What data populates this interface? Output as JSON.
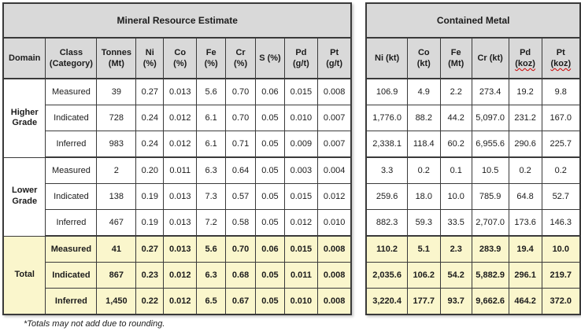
{
  "resource_table": {
    "title": "Mineral Resource Estimate",
    "columns": [
      {
        "id": "domain",
        "lines": [
          "Domain"
        ]
      },
      {
        "id": "class",
        "lines": [
          "Class",
          "(Category)"
        ]
      },
      {
        "id": "tonnes",
        "lines": [
          "Tonnes",
          "(Mt)"
        ]
      },
      {
        "id": "ni",
        "lines": [
          "Ni",
          "(%)"
        ]
      },
      {
        "id": "co",
        "lines": [
          "Co",
          "(%)"
        ]
      },
      {
        "id": "fe",
        "lines": [
          "Fe",
          "(%)"
        ]
      },
      {
        "id": "cr",
        "lines": [
          "Cr",
          "(%)"
        ]
      },
      {
        "id": "s",
        "lines": [
          "S (%)"
        ]
      },
      {
        "id": "pd",
        "lines": [
          "Pd",
          "(g/t)"
        ]
      },
      {
        "id": "pt",
        "lines": [
          "Pt",
          "(g/t)"
        ]
      }
    ]
  },
  "metal_table": {
    "title": "Contained Metal",
    "columns": [
      {
        "id": "ni",
        "lines": [
          "Ni (kt)"
        ]
      },
      {
        "id": "co",
        "lines": [
          "Co",
          "(kt)"
        ]
      },
      {
        "id": "fe",
        "lines": [
          "Fe",
          "(Mt)"
        ]
      },
      {
        "id": "cr",
        "lines": [
          "Cr (kt)"
        ]
      },
      {
        "id": "pd",
        "lines": [
          "Pd",
          "(koz)"
        ],
        "squiggle_line": 1
      },
      {
        "id": "pt",
        "lines": [
          "Pt",
          "(koz)"
        ],
        "squiggle_line": 1
      }
    ]
  },
  "groups": [
    {
      "domain": "Higher Grade",
      "total": false,
      "rows": [
        {
          "class": "Measured",
          "resource": [
            "39",
            "0.27",
            "0.013",
            "5.6",
            "0.70",
            "0.06",
            "0.015",
            "0.008"
          ],
          "metal": [
            "106.9",
            "4.9",
            "2.2",
            "273.4",
            "19.2",
            "9.8"
          ]
        },
        {
          "class": "Indicated",
          "resource": [
            "728",
            "0.24",
            "0.012",
            "6.1",
            "0.70",
            "0.05",
            "0.010",
            "0.007"
          ],
          "metal": [
            "1,776.0",
            "88.2",
            "44.2",
            "5,097.0",
            "231.2",
            "167.0"
          ]
        },
        {
          "class": "Inferred",
          "resource": [
            "983",
            "0.24",
            "0.012",
            "6.1",
            "0.71",
            "0.05",
            "0.009",
            "0.007"
          ],
          "metal": [
            "2,338.1",
            "118.4",
            "60.2",
            "6,955.6",
            "290.6",
            "225.7"
          ]
        }
      ]
    },
    {
      "domain": "Lower Grade",
      "total": false,
      "rows": [
        {
          "class": "Measured",
          "resource": [
            "2",
            "0.20",
            "0.011",
            "6.3",
            "0.64",
            "0.05",
            "0.003",
            "0.004"
          ],
          "metal": [
            "3.3",
            "0.2",
            "0.1",
            "10.5",
            "0.2",
            "0.2"
          ]
        },
        {
          "class": "Indicated",
          "resource": [
            "138",
            "0.19",
            "0.013",
            "7.3",
            "0.57",
            "0.05",
            "0.015",
            "0.012"
          ],
          "metal": [
            "259.6",
            "18.0",
            "10.0",
            "785.9",
            "64.8",
            "52.7"
          ]
        },
        {
          "class": "Inferred",
          "resource": [
            "467",
            "0.19",
            "0.013",
            "7.2",
            "0.58",
            "0.05",
            "0.012",
            "0.010"
          ],
          "metal": [
            "882.3",
            "59.3",
            "33.5",
            "2,707.0",
            "173.6",
            "146.3"
          ]
        }
      ]
    },
    {
      "domain": "Total",
      "total": true,
      "rows": [
        {
          "class": "Measured",
          "resource": [
            "41",
            "0.27",
            "0.013",
            "5.6",
            "0.70",
            "0.06",
            "0.015",
            "0.008"
          ],
          "metal": [
            "110.2",
            "5.1",
            "2.3",
            "283.9",
            "19.4",
            "10.0"
          ]
        },
        {
          "class": "Indicated",
          "resource": [
            "867",
            "0.23",
            "0.012",
            "6.3",
            "0.68",
            "0.05",
            "0.011",
            "0.008"
          ],
          "metal": [
            "2,035.6",
            "106.2",
            "54.2",
            "5,882.9",
            "296.1",
            "219.7"
          ]
        },
        {
          "class": "Inferred",
          "resource": [
            "1,450",
            "0.22",
            "0.012",
            "6.5",
            "0.67",
            "0.05",
            "0.010",
            "0.008"
          ],
          "metal": [
            "3,220.4",
            "177.7",
            "93.7",
            "9,662.6",
            "464.2",
            "372.0"
          ]
        }
      ]
    }
  ],
  "footnote": "*Totals may not add due to rounding.",
  "colors": {
    "header_bg": "#d9d9d9",
    "total_row_bg": "#faf6cc",
    "border": "#3a3a3a",
    "squiggle": "#cc0000"
  }
}
